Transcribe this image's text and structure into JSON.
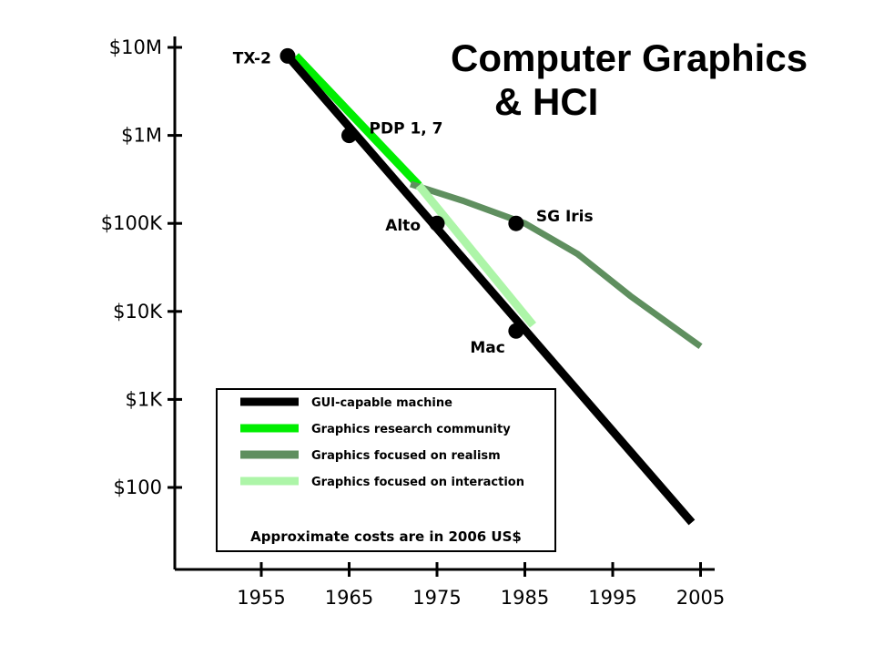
{
  "chart_data": {
    "type": "line",
    "title": "Computer Graphics",
    "title_line2": "& HCI",
    "x_ticks": [
      1955,
      1965,
      1975,
      1985,
      1995,
      2005
    ],
    "y_ticks": [
      "$10M",
      "$1M",
      "$100K",
      "$10K",
      "$1K",
      "$100"
    ],
    "y_tick_values": [
      10000000,
      1000000,
      100000,
      10000,
      1000,
      100
    ],
    "x_range": [
      1946,
      2007
    ],
    "y_scale": "log",
    "y_range": [
      6,
      12000000
    ],
    "series": [
      {
        "name": "GUI-capable machine",
        "color": "#000000",
        "x": [
          1958,
          2004
        ],
        "y": [
          8000000,
          40
        ]
      },
      {
        "name": "Graphics research community",
        "color": "#00ee00",
        "x": [
          1958,
          1972
        ],
        "y": [
          8000000,
          270000
        ]
      },
      {
        "name": "Graphics focused on realism",
        "color": "#5f8f5f",
        "x": [
          1972,
          1978,
          1985,
          1991,
          1997,
          2005
        ],
        "y": [
          280000,
          180000,
          100000,
          45000,
          15000,
          4000
        ]
      },
      {
        "name": "Graphics focused on interaction",
        "color": "#adf5a8",
        "x": [
          1972,
          1985
        ],
        "y": [
          270000,
          7000
        ]
      }
    ],
    "points": [
      {
        "label": "TX-2",
        "x": 1958,
        "y": 8000000,
        "label_pos": "left"
      },
      {
        "label": "PDP 1, 7",
        "x": 1965,
        "y": 1000000,
        "label_pos": "right"
      },
      {
        "label": "Alto",
        "x": 1975,
        "y": 100000,
        "label_pos": "left"
      },
      {
        "label": "SG Iris",
        "x": 1984,
        "y": 100000,
        "label_pos": "right"
      },
      {
        "label": "Mac",
        "x": 1984,
        "y": 6000,
        "label_pos": "below-left"
      }
    ],
    "legend": {
      "placement": "bottom-center",
      "note": "Approximate costs are in 2006 US$"
    },
    "grid": false
  }
}
